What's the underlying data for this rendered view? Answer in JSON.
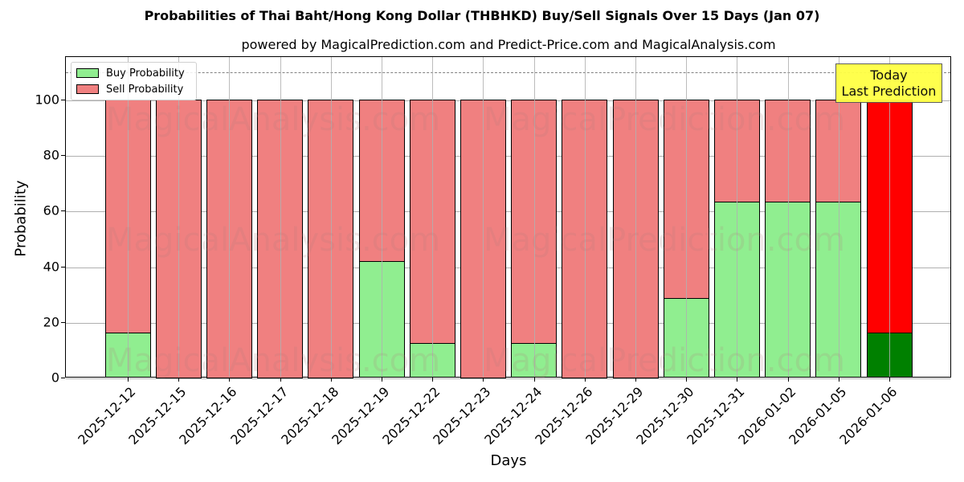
{
  "title": "Probabilities of Thai Baht/Hong Kong Dollar (THBHKD) Buy/Sell Signals Over 15 Days (Jan 07)",
  "subtitle": "powered by MagicalPrediction.com and Predict-Price.com and MagicalAnalysis.com",
  "legend": {
    "buy": "Buy Probability",
    "sell": "Sell Probability"
  },
  "annotation": {
    "line1": "Today",
    "line2": "Last Prediction"
  },
  "watermarks": [
    "MagicalAnalysis.com",
    "MagicalPrediction.com"
  ],
  "colors": {
    "buy": "#90ee90",
    "sell": "#f08080",
    "today_buy": "#008000",
    "today_sell": "#ff0000",
    "annotation_bg": "#ffff44"
  },
  "chart_data": {
    "type": "bar",
    "stacked": true,
    "title": "Probabilities of Thai Baht/Hong Kong Dollar (THBHKD) Buy/Sell Signals Over 15 Days (Jan 07)",
    "subtitle": "powered by MagicalPrediction.com and Predict-Price.com and MagicalAnalysis.com",
    "xlabel": "Days",
    "ylabel": "Probability",
    "ylim": [
      0,
      115
    ],
    "yticks": [
      0,
      20,
      40,
      60,
      80,
      100
    ],
    "reference_line": 110,
    "grid": true,
    "legend_position": "upper left",
    "categories": [
      "2025-12-12",
      "2025-12-15",
      "2025-12-16",
      "2025-12-17",
      "2025-12-18",
      "2025-12-19",
      "2025-12-22",
      "2025-12-23",
      "2025-12-24",
      "2025-12-26",
      "2025-12-29",
      "2025-12-30",
      "2025-12-31",
      "2026-01-02",
      "2026-01-05",
      "2026-01-06"
    ],
    "series": [
      {
        "name": "Buy Probability",
        "values": [
          16.2,
          0,
          0,
          0,
          0,
          41.9,
          12.4,
          0,
          12.4,
          0,
          0,
          28.6,
          63.3,
          63.3,
          63.3,
          16.2
        ]
      },
      {
        "name": "Sell Probability",
        "values": [
          83.8,
          100,
          100,
          100,
          100,
          58.1,
          87.6,
          100,
          87.6,
          100,
          100,
          71.4,
          36.7,
          36.7,
          36.7,
          83.8
        ]
      }
    ],
    "annotations": [
      {
        "text": "Today\nLast Prediction",
        "x": "2026-01-06"
      }
    ]
  }
}
